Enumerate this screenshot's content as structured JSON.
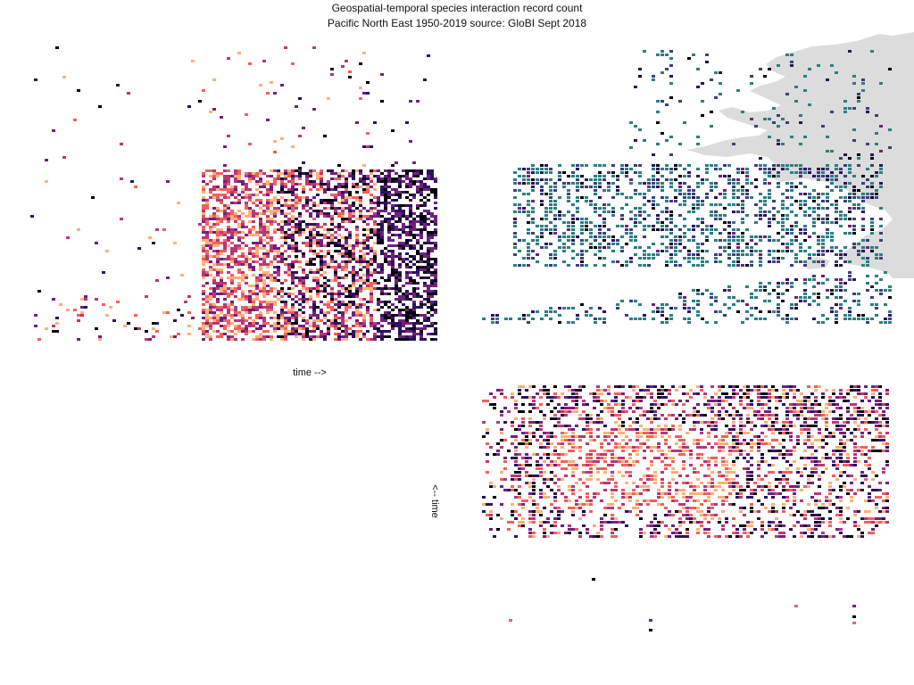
{
  "chart_data": {
    "type": "heatmap",
    "title": "Geospatial-temporal species interaction record count",
    "subtitle": "Pacific North East 1950-2019 source: GloBI Sept 2018",
    "time_range": [
      1950,
      2019
    ],
    "legend": "none",
    "grid": false,
    "colors": {
      "magma": [
        "#000004",
        "#2c115f",
        "#721f81",
        "#b73779",
        "#f1605d",
        "#feb078"
      ],
      "map_cell": "#2a7f84",
      "map_cell_dark": "#3b3f7f",
      "land": "#dcdcdc"
    },
    "panels": [
      {
        "name": "time-by-latitude",
        "xlabel": "time -->",
        "ylabel": "",
        "x_range": [
          1950,
          2019
        ],
        "description_type": "heatmap"
      },
      {
        "name": "geospatial-map",
        "xlabel": "",
        "ylabel": "",
        "description_type": "map-heatmap"
      },
      {
        "name": "longitude-by-time",
        "xlabel": "",
        "ylabel": "<-- time",
        "y_range": [
          1950,
          2019
        ],
        "description_type": "heatmap"
      }
    ]
  }
}
